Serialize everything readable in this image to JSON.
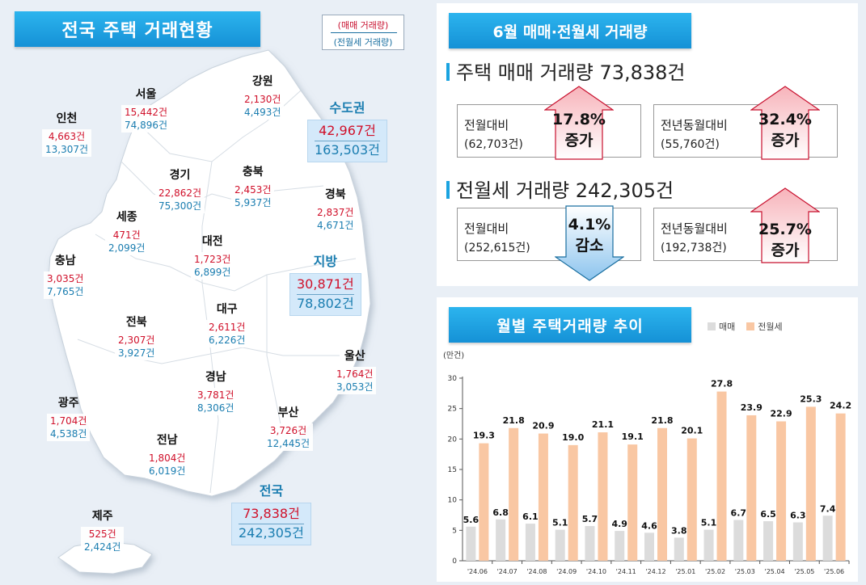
{
  "map_panel": {
    "title": "전국 주택 거래현황",
    "legend": {
      "sale_label": "(매매 거래량)",
      "rent_label": "(전월세 거래량)"
    },
    "regions": [
      {
        "name": "인천",
        "sale": "4,663건",
        "rent": "13,307건"
      },
      {
        "name": "서울",
        "sale": "15,442건",
        "rent": "74,896건"
      },
      {
        "name": "강원",
        "sale": "2,130건",
        "rent": "4,493건"
      },
      {
        "name": "경기",
        "sale": "22,862건",
        "rent": "75,300건"
      },
      {
        "name": "충북",
        "sale": "2,453건",
        "rent": "5,937건"
      },
      {
        "name": "경북",
        "sale": "2,837건",
        "rent": "4,671건"
      },
      {
        "name": "세종",
        "sale": "471건",
        "rent": "2,099건"
      },
      {
        "name": "충남",
        "sale": "3,035건",
        "rent": "7,765건"
      },
      {
        "name": "대전",
        "sale": "1,723건",
        "rent": "6,899건"
      },
      {
        "name": "대구",
        "sale": "2,611건",
        "rent": "6,226건"
      },
      {
        "name": "전북",
        "sale": "2,307건",
        "rent": "3,927건"
      },
      {
        "name": "울산",
        "sale": "1,764건",
        "rent": "3,053건"
      },
      {
        "name": "경남",
        "sale": "3,781건",
        "rent": "8,306건"
      },
      {
        "name": "광주",
        "sale": "1,704건",
        "rent": "4,538건"
      },
      {
        "name": "부산",
        "sale": "3,726건",
        "rent": "12,445건"
      },
      {
        "name": "전남",
        "sale": "1,804건",
        "rent": "6,019건"
      },
      {
        "name": "제주",
        "sale": "525건",
        "rent": "2,424건"
      }
    ],
    "aggregates": {
      "capital": {
        "name": "수도권",
        "sale": "42,967건",
        "rent": "163,503건"
      },
      "local": {
        "name": "지방",
        "sale": "30,871건",
        "rent": "78,802건"
      },
      "national": {
        "name": "전국",
        "sale": "73,838건",
        "rent": "242,305건"
      }
    }
  },
  "summary": {
    "title": "6월 매매·전월세 거래량",
    "sale": {
      "headline": "주택 매매 거래량 73,838건",
      "mom": {
        "label": "전월대비",
        "base": "(62,703건)",
        "pct": "17.8%",
        "dir": "증가"
      },
      "yoy": {
        "label": "전년동월대비",
        "base": "(55,760건)",
        "pct": "32.4%",
        "dir": "증가"
      }
    },
    "rent": {
      "headline": "전월세 거래량 242,305건",
      "mom": {
        "label": "전월대비",
        "base": "(252,615건)",
        "pct": "4.1%",
        "dir": "감소"
      },
      "yoy": {
        "label": "전년동월대비",
        "base": "(192,738건)",
        "pct": "25.7%",
        "dir": "증가"
      }
    }
  },
  "colors": {
    "sale_bar": "#dcdcdc",
    "rent_bar": "#f9c7a3",
    "accent": "#1591d6",
    "increase": "#c8102e",
    "decrease": "#1a6fa0"
  },
  "chart_data": {
    "type": "bar",
    "title": "월별 주택거래량 추이",
    "ylabel": "(만건)",
    "xlabel": "",
    "ylim": [
      0,
      30
    ],
    "yticks": [
      0,
      5,
      10,
      15,
      20,
      25,
      30
    ],
    "legend_position": "top-right",
    "categories": [
      "'24.06",
      "'24.07",
      "'24.08",
      "'24.09",
      "'24.10",
      "'24.11",
      "'24.12",
      "'25.01",
      "'25.02",
      "'25.03",
      "'25.04",
      "'25.05",
      "'25.06"
    ],
    "series": [
      {
        "name": "매매",
        "values": [
          5.6,
          6.8,
          6.1,
          5.1,
          5.7,
          4.9,
          4.6,
          3.8,
          5.1,
          6.7,
          6.5,
          6.3,
          7.4
        ]
      },
      {
        "name": "전월세",
        "values": [
          19.3,
          21.8,
          20.9,
          19.0,
          21.1,
          19.1,
          21.8,
          20.1,
          27.8,
          23.9,
          22.9,
          25.3,
          24.2
        ]
      }
    ],
    "labels": {
      "매매": [
        "5.6",
        "6.8",
        "6.1",
        "5.1",
        "5.7",
        "4.9",
        "4.6",
        "3.8",
        "5.1",
        "6.7",
        "6.5",
        "6.3",
        "7.4"
      ],
      "전월세": [
        "19.3",
        "21.8",
        "20.9",
        "19.0",
        "21.1",
        "19.1",
        "21.8",
        "20.1",
        "27.8",
        "23.9",
        "22.9",
        "25.3",
        "24.2"
      ]
    }
  }
}
